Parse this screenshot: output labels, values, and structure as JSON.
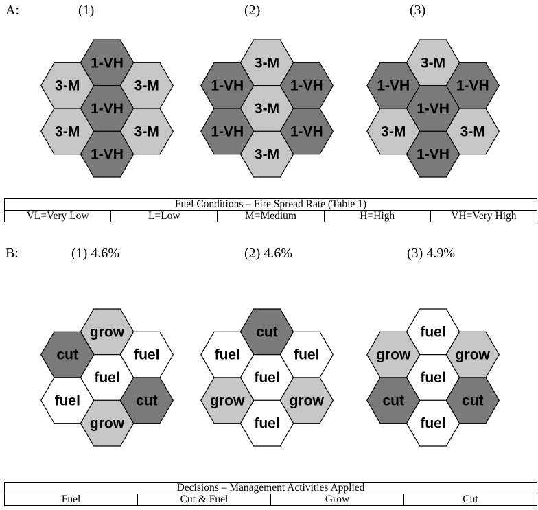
{
  "section_a": {
    "label": "A:",
    "panels": [
      {
        "title": "(1)",
        "cells": [
          {
            "label": "1-VH",
            "fill": "dark"
          },
          {
            "label": "3-M",
            "fill": "light"
          },
          {
            "label": "3-M",
            "fill": "light"
          },
          {
            "label": "1-VH",
            "fill": "dark"
          },
          {
            "label": "3-M",
            "fill": "light"
          },
          {
            "label": "3-M",
            "fill": "light"
          },
          {
            "label": "1-VH",
            "fill": "dark"
          }
        ]
      },
      {
        "title": "(2)",
        "cells": [
          {
            "label": "3-M",
            "fill": "light"
          },
          {
            "label": "1-VH",
            "fill": "dark"
          },
          {
            "label": "1-VH",
            "fill": "dark"
          },
          {
            "label": "3-M",
            "fill": "light"
          },
          {
            "label": "1-VH",
            "fill": "dark"
          },
          {
            "label": "1-VH",
            "fill": "dark"
          },
          {
            "label": "3-M",
            "fill": "light"
          }
        ]
      },
      {
        "title": "(3)",
        "cells": [
          {
            "label": "3-M",
            "fill": "light"
          },
          {
            "label": "1-VH",
            "fill": "dark"
          },
          {
            "label": "1-VH",
            "fill": "dark"
          },
          {
            "label": "1-VH",
            "fill": "dark"
          },
          {
            "label": "3-M",
            "fill": "light"
          },
          {
            "label": "3-M",
            "fill": "light"
          },
          {
            "label": "1-VH",
            "fill": "dark"
          }
        ]
      }
    ],
    "table": {
      "title": "Fuel Conditions – Fire Spread Rate (Table 1)",
      "columns": [
        "VL=Very Low",
        "L=Low",
        "M=Medium",
        "H=High",
        "VH=Very High"
      ]
    }
  },
  "section_b": {
    "label": "B:",
    "panels": [
      {
        "title": "(1) 4.6%",
        "cells": [
          {
            "label": "grow",
            "fill": "light"
          },
          {
            "label": "cut",
            "fill": "dark"
          },
          {
            "label": "fuel",
            "fill": "white"
          },
          {
            "label": "fuel",
            "fill": "white"
          },
          {
            "label": "fuel",
            "fill": "white"
          },
          {
            "label": "cut",
            "fill": "dark"
          },
          {
            "label": "grow",
            "fill": "light"
          }
        ]
      },
      {
        "title": "(2) 4.6%",
        "cells": [
          {
            "label": "cut",
            "fill": "dark"
          },
          {
            "label": "fuel",
            "fill": "white"
          },
          {
            "label": "fuel",
            "fill": "white"
          },
          {
            "label": "fuel",
            "fill": "white"
          },
          {
            "label": "grow",
            "fill": "light"
          },
          {
            "label": "grow",
            "fill": "light"
          },
          {
            "label": "fuel",
            "fill": "white"
          }
        ]
      },
      {
        "title": "(3) 4.9%",
        "cells": [
          {
            "label": "fuel",
            "fill": "white"
          },
          {
            "label": "grow",
            "fill": "light"
          },
          {
            "label": "grow",
            "fill": "light"
          },
          {
            "label": "fuel",
            "fill": "white"
          },
          {
            "label": "cut",
            "fill": "dark"
          },
          {
            "label": "cut",
            "fill": "dark"
          },
          {
            "label": "fuel",
            "fill": "white"
          }
        ]
      }
    ],
    "table": {
      "title": "Decisions – Management Activities Applied",
      "columns": [
        "Fuel",
        "Cut & Fuel",
        "Grow",
        "Cut"
      ]
    }
  },
  "colors": {
    "dark": "#7a7a7a",
    "light": "#c6c6c6",
    "white": "#ffffff",
    "stroke": "#000000"
  }
}
